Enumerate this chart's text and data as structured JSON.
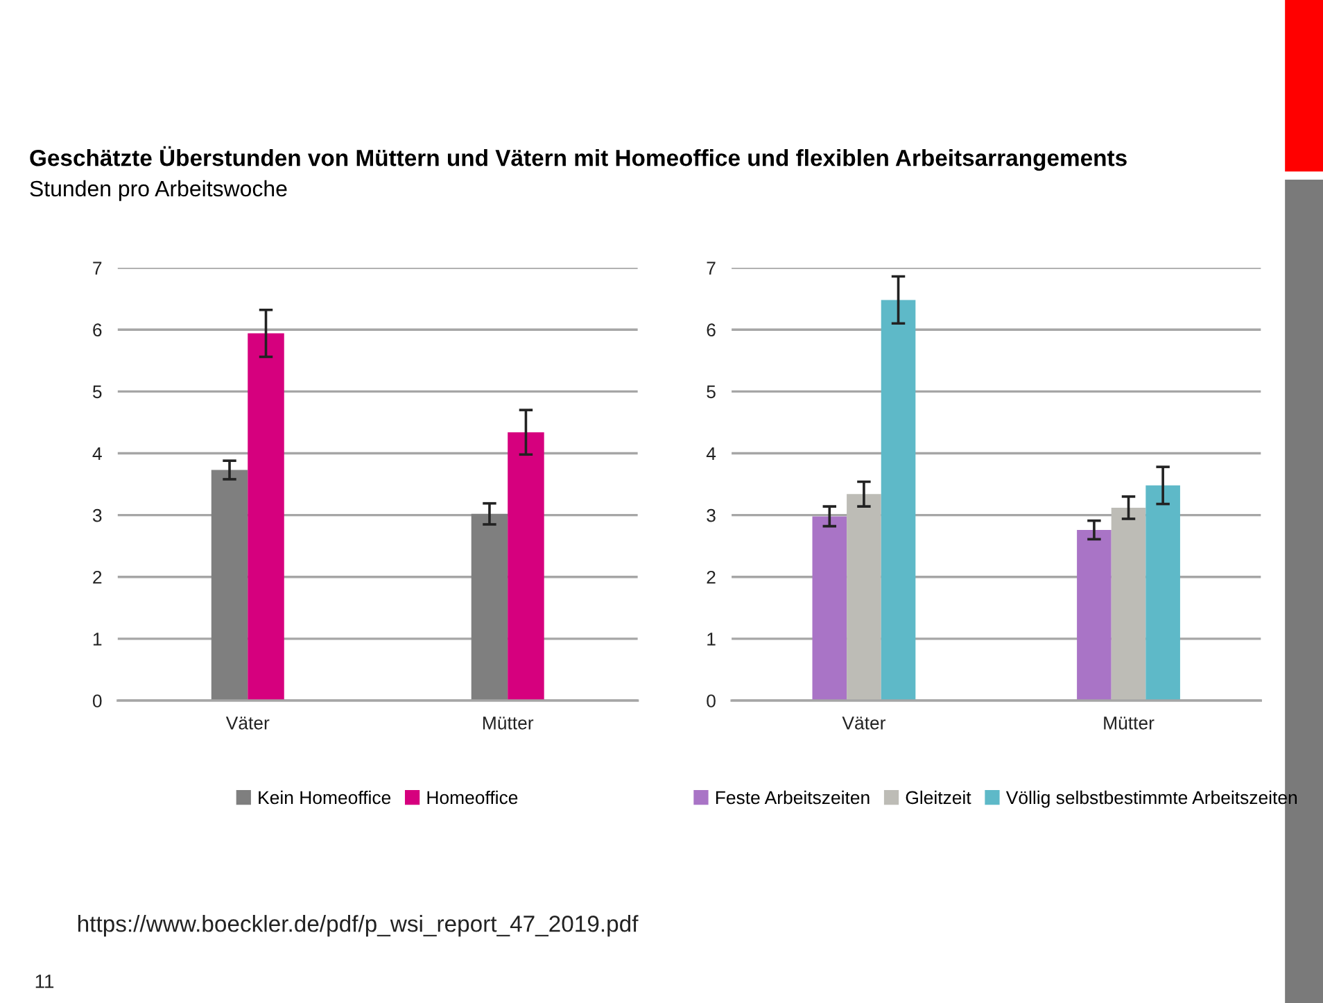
{
  "chart_data": [
    {
      "type": "bar",
      "title": "Geschätzte Überstunden von Müttern und Vätern mit Homeoffice und flexiblen Arbeitsarrangements",
      "subtitle": "Stunden pro Arbeitswoche",
      "categories": [
        "Väter",
        "Mütter"
      ],
      "series": [
        {
          "name": "Kein Homeoffice",
          "color": "#7f7f7f",
          "values": [
            3.73,
            3.02
          ],
          "errors": [
            0.15,
            0.17
          ]
        },
        {
          "name": "Homeoffice",
          "color": "#d6007e",
          "values": [
            5.94,
            4.34
          ],
          "errors": [
            0.38,
            0.36
          ]
        }
      ],
      "ylim": [
        0,
        7
      ],
      "yticks": [
        0,
        1,
        2,
        3,
        4,
        5,
        6,
        7
      ],
      "grid": "y",
      "legend": "bottom",
      "annotations": [
        "https://www.boeckler.de/pdf/p_wsi_report_47_2019.pdf",
        "11"
      ]
    },
    {
      "type": "bar",
      "categories": [
        "Väter",
        "Mütter"
      ],
      "series": [
        {
          "name": "Feste Arbeitszeiten",
          "color": "#a974c6",
          "values": [
            2.98,
            2.76
          ],
          "errors": [
            0.16,
            0.15
          ]
        },
        {
          "name": "Gleitzeit",
          "color": "#bdbcb6",
          "values": [
            3.34,
            3.12
          ],
          "errors": [
            0.2,
            0.18
          ]
        },
        {
          "name": "Völlig selbstbestimmte Arbeitszeiten",
          "color": "#5eb9c8",
          "values": [
            6.48,
            3.48
          ],
          "errors": [
            0.38,
            0.3
          ]
        }
      ],
      "ylim": [
        0,
        7
      ],
      "yticks": [
        0,
        1,
        2,
        3,
        4,
        5,
        6,
        7
      ],
      "grid": "y",
      "legend": "bottom"
    }
  ]
}
